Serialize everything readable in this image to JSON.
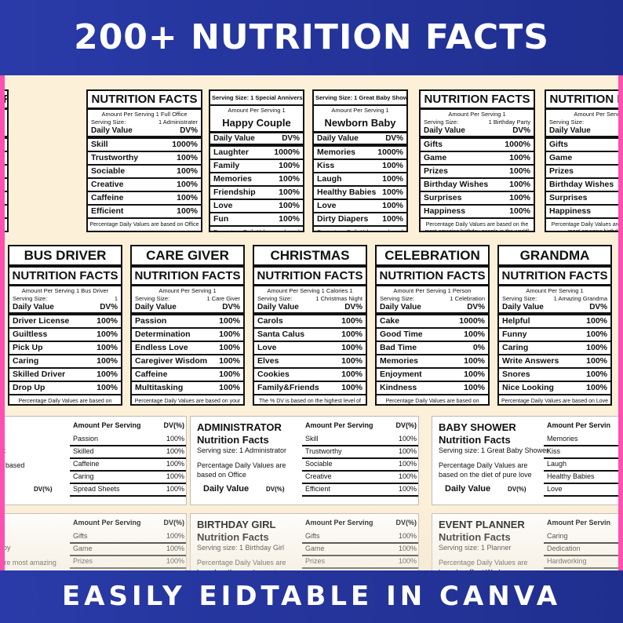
{
  "header": {
    "title": "200+ NUTRITION FACTS"
  },
  "footer": {
    "title": "EASILY EIDTABLE IN CANVA"
  },
  "row1": [
    {
      "title": "NUTRITION FACTS",
      "serving": "Amount Per Serving 1",
      "ss_left": "",
      "ss_right": "1 Accountant",
      "dv_right": "DV%",
      "items": [
        {
          "n": "",
          "v": "1000%"
        },
        {
          "n": "",
          "v": "100%"
        },
        {
          "n": "",
          "v": "100%"
        },
        {
          "n": "",
          "v": "100%"
        },
        {
          "n": "eets",
          "v": "100%"
        },
        {
          "n": "",
          "v": "100%"
        }
      ],
      "foot": "y Values are based on Behaviour"
    },
    {
      "title": "NUTRITION FACTS",
      "serving": "Amount Per Serving 1 Full Office",
      "ss_left": "Serving Size:",
      "ss_right": "1 Administrater",
      "dv_left": "Daily Value",
      "dv_right": "DV%",
      "items": [
        {
          "n": "Skill",
          "v": "1000%"
        },
        {
          "n": "Trustworthy",
          "v": "100%"
        },
        {
          "n": "Sociable",
          "v": "100%"
        },
        {
          "n": "Creative",
          "v": "100%"
        },
        {
          "n": "Caffeine",
          "v": "100%"
        },
        {
          "n": "Efficient",
          "v": "100%"
        }
      ],
      "foot": "Percentage Daily Values are based on Office"
    },
    {
      "top": "Serving Size: 1 Special Anniversary",
      "serving": "Amount Per Serving 1",
      "big": "Happy Couple",
      "dv_left": "Daily Value",
      "dv_right": "DV%",
      "items": [
        {
          "n": "Laughter",
          "v": "1000%"
        },
        {
          "n": "Family",
          "v": "100%"
        },
        {
          "n": "Memories",
          "v": "100%"
        },
        {
          "n": "Friendship",
          "v": "100%"
        },
        {
          "n": "Love",
          "v": "100%"
        },
        {
          "n": "Fun",
          "v": "100%"
        }
      ],
      "foot": "Percentage Daily Values are based on the most amazing birthday people in the world"
    },
    {
      "top": "Serving Size: 1 Great Baby Shower",
      "serving": "Amount Per Serving 1",
      "big": "Newborn Baby",
      "dv_left": "Daily Value",
      "dv_right": "DV%",
      "items": [
        {
          "n": "Memories",
          "v": "1000%"
        },
        {
          "n": "Kiss",
          "v": "100%"
        },
        {
          "n": "Laugh",
          "v": "100%"
        },
        {
          "n": "Healthy Babies",
          "v": "100%"
        },
        {
          "n": "Love",
          "v": "100%"
        },
        {
          "n": "Dirty Diapers",
          "v": "100%"
        }
      ],
      "foot": "Percentage Daily Values are based on the diet of pure love"
    },
    {
      "title": "NUTRITION FACTS",
      "serving": "Amount Per Serving 1",
      "ss_left": "Serving Size:",
      "ss_right": "1 Birthday Party",
      "dv_left": "Daily Value",
      "dv_right": "DV%",
      "items": [
        {
          "n": "Gifts",
          "v": "1000%"
        },
        {
          "n": "Game",
          "v": "100%"
        },
        {
          "n": "Prizes",
          "v": "100%"
        },
        {
          "n": "Birthday Wishes",
          "v": "100%"
        },
        {
          "n": "Surprises",
          "v": "100%"
        },
        {
          "n": "Happiness",
          "v": "100%"
        }
      ],
      "foot": "Percentage Daily Values are based on the most amazing birthday people in the world!"
    },
    {
      "title": "NUTRITION FACTS",
      "serving": "Amount Per Serving 1",
      "ss_left": "Serving Size:",
      "ss_right": "1 Birthday",
      "dv_left": "Daily Value",
      "dv_right": "",
      "items": [
        {
          "n": "Gifts",
          "v": ""
        },
        {
          "n": "Game",
          "v": ""
        },
        {
          "n": "Prizes",
          "v": ""
        },
        {
          "n": "Birthday Wishes",
          "v": ""
        },
        {
          "n": "Surprises",
          "v": ""
        },
        {
          "n": "Happiness",
          "v": ""
        }
      ],
      "foot": "Percentage Daily Values are based on the most amazing birthday peop"
    }
  ],
  "row2": [
    {
      "head": "BUS DRIVER",
      "title": "NUTRITION FACTS",
      "serving": "Amount Per Serving 1 Bus Driver",
      "ss_left": "Serving Size:",
      "ss_right": "1",
      "dv_left": "Daily Value",
      "dv_right": "DV%",
      "items": [
        {
          "n": "Driver License",
          "v": "100%"
        },
        {
          "n": "Guiltless",
          "v": "100%"
        },
        {
          "n": "Pick Up",
          "v": "100%"
        },
        {
          "n": "Caring",
          "v": "100%"
        },
        {
          "n": "Skilled Driver",
          "v": "100%"
        },
        {
          "n": "Drop Up",
          "v": "100%"
        }
      ],
      "foot": "Percentage Daily Values are based on passenger"
    },
    {
      "head": "CARE GIVER",
      "title": "NUTRITION FACTS",
      "serving": "Amount Per Serving 1",
      "ss_left": "Serving Size:",
      "ss_right": "1 Care Giver",
      "dv_left": "Daily Value",
      "dv_right": "DV%",
      "items": [
        {
          "n": "Passion",
          "v": "100%"
        },
        {
          "n": "Determination",
          "v": "100%"
        },
        {
          "n": "Endless Love",
          "v": "100%"
        },
        {
          "n": "Caregiver Wisdom",
          "v": "100%"
        },
        {
          "n": "Caffeine",
          "v": "100%"
        },
        {
          "n": "Multitasking",
          "v": "100%"
        }
      ],
      "foot": "Percentage Daily Values are based on your unique Diet"
    },
    {
      "head": "CHRISTMAS",
      "title": "NUTRITION FACTS",
      "serving": "Amount Per Serving 1  Calories 1",
      "ss_left": "Serving Size:",
      "ss_right": "1 Christmas Night",
      "dv_left": "Daily Value",
      "dv_right": "DV%",
      "items": [
        {
          "n": "Carols",
          "v": "100%"
        },
        {
          "n": "Santa Calus",
          "v": "100%"
        },
        {
          "n": "Love",
          "v": "100%"
        },
        {
          "n": "Elves",
          "v": "100%"
        },
        {
          "n": "Cookies",
          "v": "100%"
        },
        {
          "n": "Family&Friends",
          "v": "100%"
        }
      ],
      "foot": "The % DV is based on the highest level of excitement to celebrate."
    },
    {
      "head": "CELEBRATION",
      "title": "NUTRITION FACTS",
      "serving": "Amount Per Serving 1 Person",
      "ss_left": "Serving Size:",
      "ss_right": "1 Celebration",
      "dv_left": "Daily Value",
      "dv_right": "DV%",
      "items": [
        {
          "n": "Cake",
          "v": "1000%"
        },
        {
          "n": "Good Time",
          "v": "100%"
        },
        {
          "n": "Bad Time",
          "v": "0%"
        },
        {
          "n": "Memories",
          "v": "100%"
        },
        {
          "n": "Enjoyment",
          "v": "100%"
        },
        {
          "n": "Kindness",
          "v": "100%"
        }
      ],
      "foot": "Percentage Daily Values are based on Friends & Family"
    },
    {
      "head": "GRANDMA",
      "title": "NUTRITION FACTS",
      "serving": "Amount Per Serving 1",
      "ss_left": "Serving Size:",
      "ss_right": "1 Amazing Grandma",
      "dv_left": "Daily Value",
      "dv_right": "DV%",
      "items": [
        {
          "n": "Helpful",
          "v": "100%"
        },
        {
          "n": "Funny",
          "v": "100%"
        },
        {
          "n": "Caring",
          "v": "100%"
        },
        {
          "n": "Write Answers",
          "v": "100%"
        },
        {
          "n": "Snores",
          "v": "100%"
        },
        {
          "n": "Nice Looking",
          "v": "100%"
        }
      ],
      "foot": "Percentage Daily Values are based on Love"
    }
  ],
  "row3": [
    {
      "title": "ANT",
      "nf": "Facts",
      "ss": "1 Accountant",
      "para": "y Values are based",
      "dvl": "ue",
      "dvr": "DV(%)",
      "rh_l": "Amount Per Serving",
      "rh_r": "DV(%)",
      "items": [
        {
          "n": "Passion",
          "v": "100%"
        },
        {
          "n": "Skilled",
          "v": "100%"
        },
        {
          "n": "Caffeine",
          "v": "100%"
        },
        {
          "n": "Caring",
          "v": "100%"
        },
        {
          "n": "Spread Sheets",
          "v": "100%"
        }
      ]
    },
    {
      "title": "ADMINISTRATOR",
      "nf": "Nutrition Facts",
      "ss": "Serving size:    1 Administrator",
      "para": "Percentage Daily Values are based on Office",
      "dvl": "Daily Value",
      "dvr": "DV(%)",
      "rh_l": "Amount Per Serving",
      "rh_r": "DV(%)",
      "items": [
        {
          "n": "Skill",
          "v": "100%"
        },
        {
          "n": "Trustworthy",
          "v": "100%"
        },
        {
          "n": "Sociable",
          "v": "100%"
        },
        {
          "n": "Creative",
          "v": "100%"
        },
        {
          "n": "Efficient",
          "v": "100%"
        }
      ]
    },
    {
      "title": "BABY SHOWER",
      "nf": "Nutrition Facts",
      "ss": "Serving size:    1 Great Baby Shower",
      "para": "Percentage Daily Values are based on the diet of pure love",
      "dvl": "Daily Value",
      "dvr": "DV(%)",
      "rh_l": "Amount Per Servin",
      "rh_r": "",
      "items": [
        {
          "n": "Memories",
          "v": ""
        },
        {
          "n": "Kiss",
          "v": ""
        },
        {
          "n": "Laugh",
          "v": ""
        },
        {
          "n": "Healthy Babies",
          "v": ""
        },
        {
          "n": "Love",
          "v": ""
        }
      ]
    }
  ],
  "row4": [
    {
      "title": "BOY",
      "nf": "Facts",
      "ss": "1 Birthday Boy",
      "para": "aily Values are most amazing",
      "rh_l": "Amount Per Serving",
      "rh_r": "DV(%)",
      "items": [
        {
          "n": "Gifts",
          "v": "100%"
        },
        {
          "n": "Game",
          "v": "100%"
        },
        {
          "n": "Prizes",
          "v": "100%"
        }
      ]
    },
    {
      "title": "BIRTHDAY GIRL",
      "nf": "Nutrition Facts",
      "ss": "Serving size:    1 Birthday Girl",
      "para": "Percentage Daily Values are based on the most amazing",
      "rh_l": "Amount Per Serving",
      "rh_r": "DV(%)",
      "items": [
        {
          "n": "Gifts",
          "v": "100%"
        },
        {
          "n": "Game",
          "v": "100%"
        },
        {
          "n": "Prizes",
          "v": "100%"
        }
      ]
    },
    {
      "title": "EVENT PLANNER",
      "nf": "Nutrition Facts",
      "ss": "Serving size:         1 Planner",
      "para": "Percentage Daily Values are based on Best Work",
      "rh_l": "Amount Per Servin",
      "rh_r": "",
      "items": [
        {
          "n": "Caring",
          "v": ""
        },
        {
          "n": "Dedication",
          "v": ""
        },
        {
          "n": "Hardworking",
          "v": ""
        }
      ]
    }
  ]
}
